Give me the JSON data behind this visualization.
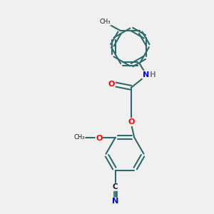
{
  "background_color": "#f0f0f0",
  "bond_color": "#2d6b6b",
  "atom_colors": {
    "O": "#ff0000",
    "N": "#0000ff",
    "C": "#1a1a1a",
    "H": "#808080"
  },
  "figsize": [
    3.0,
    3.0
  ],
  "dpi": 100,
  "lw": 1.5
}
